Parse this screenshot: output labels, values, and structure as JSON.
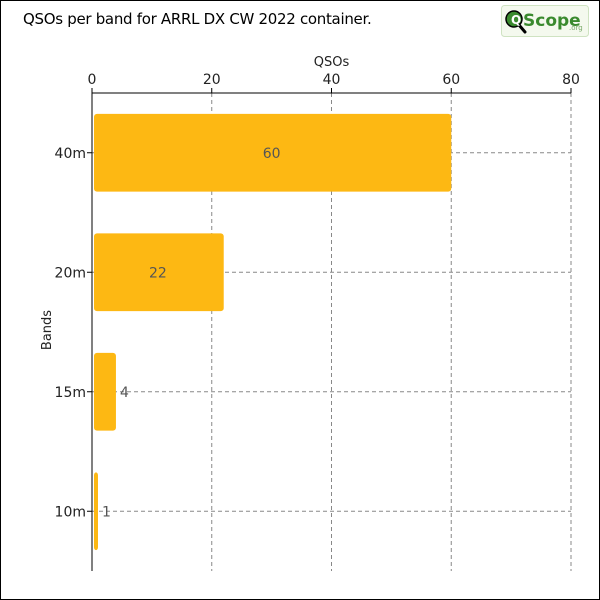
{
  "title": "QSOs per band for ARRL DX CW 2022 container.",
  "logo": {
    "main_text": "QScope",
    "suffix": ".org"
  },
  "colors": {
    "bar": "#FDB813",
    "grid": "#888888",
    "logo_green": "#3a8a2e"
  },
  "chart_data": {
    "type": "bar",
    "orientation": "horizontal",
    "categories": [
      "40m",
      "20m",
      "15m",
      "10m"
    ],
    "values": [
      60,
      22,
      4,
      1
    ],
    "xlabel": "QSOs",
    "ylabel": "Bands",
    "xlim": [
      0,
      80
    ],
    "xticks": [
      0,
      20,
      40,
      60,
      80
    ],
    "x_axis_position": "top",
    "grid": true,
    "data_labels": [
      "60",
      "22",
      "4",
      "1"
    ]
  }
}
